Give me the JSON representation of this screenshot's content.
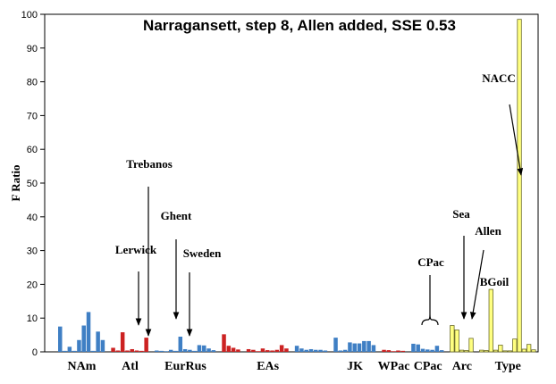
{
  "chart_data": {
    "type": "bar",
    "title": "Narragansett, step 8, Allen added, SSE 0.53",
    "ylabel": "F Ratio",
    "xlabel": "",
    "ylim": [
      0,
      100
    ],
    "yticks": [
      0,
      10,
      20,
      30,
      40,
      50,
      60,
      70,
      80,
      90,
      100
    ],
    "grid": false,
    "group_colors": {
      "blue": "#3f7fc4",
      "red": "#cc2222",
      "yellow": "#ffff80",
      "gray": "#8a8a8a"
    },
    "groups": [
      {
        "label": "NAm",
        "color": "blue",
        "values": [
          7.5,
          0.3,
          1.5,
          0.3,
          3.5,
          7.8,
          11.8,
          0.3,
          6.0,
          3.5
        ]
      },
      {
        "label": "Atl",
        "color": "red",
        "values": [
          1.2,
          0.4,
          5.8,
          0.4,
          0.8,
          0.4,
          0.3,
          4.2
        ]
      },
      {
        "label": "EurRus",
        "color": "blue",
        "values": [
          0.4,
          0.3,
          0.2,
          0.6,
          0.3,
          4.5,
          0.8,
          0.6,
          0.3,
          2.0,
          1.9,
          1.0,
          0.5
        ]
      },
      {
        "label": "",
        "color": "red",
        "values": [
          5.2,
          1.8,
          1.2,
          0.7
        ]
      },
      {
        "label": "EAs",
        "color": "red",
        "values": [
          0.8,
          0.6,
          0.2,
          1.0,
          0.5,
          0.4,
          0.6,
          2.0,
          1.0
        ]
      },
      {
        "label": "",
        "color": "blue",
        "values": [
          1.8,
          1.0,
          0.6,
          0.8,
          0.6,
          0.6,
          0.4
        ]
      },
      {
        "label": "JK",
        "color": "blue",
        "values": [
          4.2,
          0.4,
          0.6,
          2.8,
          2.5,
          2.5,
          3.2,
          3.2,
          2.0
        ]
      },
      {
        "label": "WPac",
        "color": "red",
        "values": [
          0.6,
          0.5,
          0.2,
          0.4,
          0.3
        ]
      },
      {
        "label": "CPac",
        "color": "blue",
        "values": [
          2.4,
          2.2,
          0.9,
          0.7,
          0.6,
          1.8,
          0.5
        ]
      },
      {
        "label": "Arc",
        "color": "yellow",
        "values": [
          7.8,
          6.5,
          0.5,
          0.4,
          4.0
        ]
      },
      {
        "label": "Type",
        "color": "yellow",
        "values": [
          0.5,
          0.4,
          18.5,
          0.5,
          2.0,
          0.3,
          0.3,
          3.8,
          98.5,
          0.8,
          2.2,
          0.6
        ]
      }
    ],
    "annotations": [
      "Trebanos",
      "Ghent",
      "Lerwick",
      "Sweden",
      "CPac",
      "Sea",
      "Allen",
      "BGoil",
      "NACC"
    ]
  }
}
